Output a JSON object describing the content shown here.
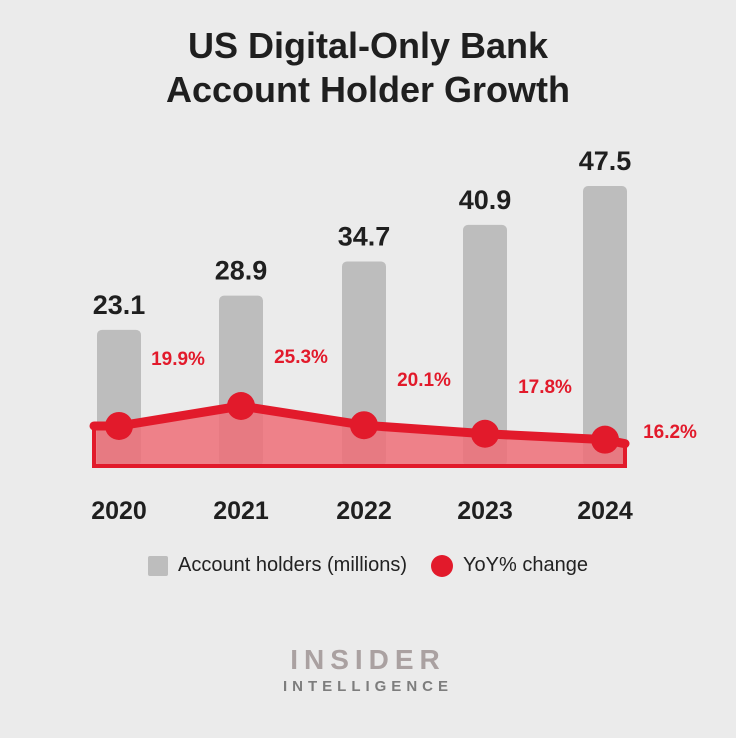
{
  "title_line1": "US Digital-Only Bank",
  "title_line2": "Account Holder Growth",
  "legend": {
    "bars_label": "Account holders (millions)",
    "line_label": "YoY% change"
  },
  "brand": {
    "line1": "INSIDER",
    "line2": "INTELLIGENCE"
  },
  "colors": {
    "bar": "#bdbdbd",
    "line": "#e21a2b",
    "area": "#ef6f78",
    "text": "#1f1f1f"
  },
  "chart_data": {
    "type": "bar",
    "categories": [
      "2020",
      "2021",
      "2022",
      "2023",
      "2024"
    ],
    "series": [
      {
        "name": "Account holders (millions)",
        "type": "bar",
        "values": [
          23.1,
          28.9,
          34.7,
          40.9,
          47.5
        ],
        "labels": [
          "23.1",
          "28.9",
          "34.7",
          "40.9",
          "47.5"
        ]
      },
      {
        "name": "YoY% change",
        "type": "area",
        "values": [
          19.9,
          25.3,
          20.1,
          17.8,
          16.2
        ],
        "labels": [
          "19.9%",
          "25.3%",
          "20.1%",
          "17.8%",
          "16.2%"
        ]
      }
    ],
    "grid": false,
    "legend_position": "bottom"
  }
}
